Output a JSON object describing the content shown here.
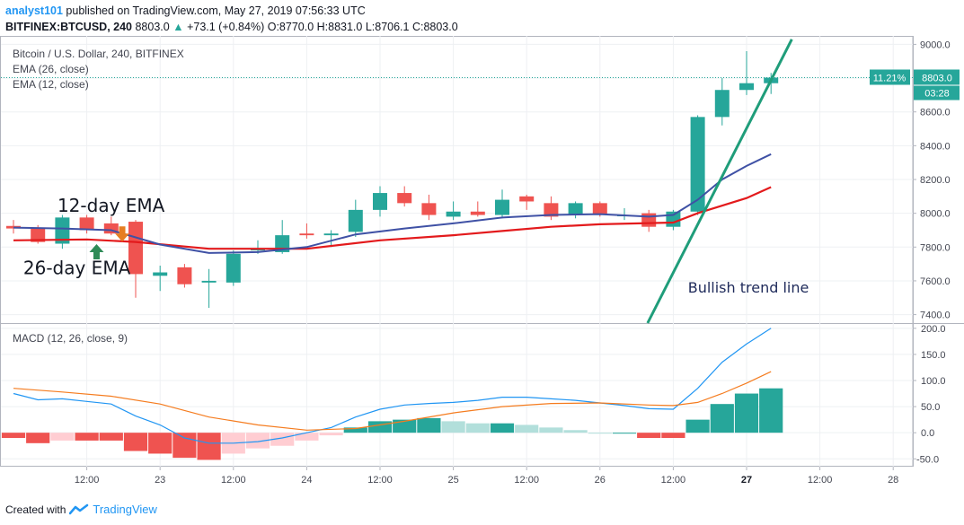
{
  "header": {
    "publisher": "analyst101",
    "published_text": "published on TradingView.com, May 27, 2019 07:56:33 UTC",
    "symbol": "BITFINEX:BTCUSD, 240",
    "price": "8803.0",
    "change": "+73.1 (+0.84%)",
    "ohlc": "O:8770.0  H:8831.0  L:8706.1  C:8803.0"
  },
  "footer": {
    "created_with": "Created with",
    "brand": "TradingView"
  },
  "colors": {
    "up": "#26a69a",
    "down": "#ef5350",
    "ema26": "#e31a1c",
    "ema12": "#3f51a5",
    "trend": "#1f9d7a",
    "macd": "#2196f3",
    "signal": "#f57c1f",
    "hist_up_strong": "#26a69a",
    "hist_up_weak": "#b2dfdb",
    "hist_down_strong": "#ef5350",
    "hist_down_weak": "#ffcdd2"
  },
  "chart_data": [
    {
      "type": "candlestick",
      "title": "Bitcoin / U.S. Dollar, 240, BITFINEX",
      "legend": [
        "EMA (26, close)",
        "EMA (12, close)"
      ],
      "x_labels": [
        {
          "x": 3,
          "label": "12:00"
        },
        {
          "x": 6,
          "label": "23"
        },
        {
          "x": 9,
          "label": "12:00"
        },
        {
          "x": 12,
          "label": "24"
        },
        {
          "x": 15,
          "label": "12:00"
        },
        {
          "x": 18,
          "label": "25"
        },
        {
          "x": 21,
          "label": "12:00"
        },
        {
          "x": 24,
          "label": "26"
        },
        {
          "x": 27,
          "label": "12:00"
        },
        {
          "x": 30,
          "label": "27"
        },
        {
          "x": 33,
          "label": "12:00"
        },
        {
          "x": 36,
          "label": "28"
        }
      ],
      "y_ticks": [
        7400,
        7600,
        7800,
        8000,
        8200,
        8400,
        8600,
        8800,
        9000
      ],
      "ylim": [
        7350,
        9050
      ],
      "candles": [
        {
          "x": 0,
          "o": 7925,
          "h": 7960,
          "l": 7880,
          "c": 7910
        },
        {
          "x": 1,
          "o": 7910,
          "h": 7930,
          "l": 7820,
          "c": 7830
        },
        {
          "x": 2,
          "o": 7820,
          "h": 7990,
          "l": 7790,
          "c": 7975
        },
        {
          "x": 3,
          "o": 7975,
          "h": 7990,
          "l": 7880,
          "c": 7900
        },
        {
          "x": 4,
          "o": 7940,
          "h": 7980,
          "l": 7870,
          "c": 7880
        },
        {
          "x": 5,
          "o": 7950,
          "h": 7960,
          "l": 7500,
          "c": 7640
        },
        {
          "x": 6,
          "o": 7630,
          "h": 7690,
          "l": 7540,
          "c": 7650
        },
        {
          "x": 7,
          "o": 7680,
          "h": 7700,
          "l": 7560,
          "c": 7580
        },
        {
          "x": 8,
          "o": 7590,
          "h": 7670,
          "l": 7440,
          "c": 7600
        },
        {
          "x": 9,
          "o": 7590,
          "h": 7780,
          "l": 7570,
          "c": 7760
        },
        {
          "x": 10,
          "o": 7780,
          "h": 7840,
          "l": 7760,
          "c": 7790
        },
        {
          "x": 11,
          "o": 7770,
          "h": 7960,
          "l": 7760,
          "c": 7870
        },
        {
          "x": 12,
          "o": 7880,
          "h": 7940,
          "l": 7850,
          "c": 7870
        },
        {
          "x": 13,
          "o": 7870,
          "h": 7900,
          "l": 7800,
          "c": 7880
        },
        {
          "x": 14,
          "o": 7890,
          "h": 8080,
          "l": 7860,
          "c": 8020
        },
        {
          "x": 15,
          "o": 8020,
          "h": 8160,
          "l": 7980,
          "c": 8120
        },
        {
          "x": 16,
          "o": 8120,
          "h": 8160,
          "l": 8040,
          "c": 8060
        },
        {
          "x": 17,
          "o": 8060,
          "h": 8110,
          "l": 7960,
          "c": 7990
        },
        {
          "x": 18,
          "o": 7980,
          "h": 8070,
          "l": 7960,
          "c": 8010
        },
        {
          "x": 19,
          "o": 8010,
          "h": 8070,
          "l": 7980,
          "c": 7990
        },
        {
          "x": 20,
          "o": 7990,
          "h": 8140,
          "l": 7970,
          "c": 8080
        },
        {
          "x": 21,
          "o": 8100,
          "h": 8110,
          "l": 8020,
          "c": 8070
        },
        {
          "x": 22,
          "o": 8060,
          "h": 8100,
          "l": 7960,
          "c": 7980
        },
        {
          "x": 23,
          "o": 7990,
          "h": 8070,
          "l": 7970,
          "c": 8060
        },
        {
          "x": 24,
          "o": 8060,
          "h": 8070,
          "l": 7980,
          "c": 7990
        },
        {
          "x": 25,
          "o": 7990,
          "h": 8030,
          "l": 7960,
          "c": 7990
        },
        {
          "x": 26,
          "o": 8000,
          "h": 8020,
          "l": 7890,
          "c": 7920
        },
        {
          "x": 27,
          "o": 7920,
          "h": 8020,
          "l": 7900,
          "c": 8010
        },
        {
          "x": 28,
          "o": 8010,
          "h": 8580,
          "l": 7990,
          "c": 8570
        },
        {
          "x": 29,
          "o": 8570,
          "h": 8800,
          "l": 8520,
          "c": 8730
        },
        {
          "x": 30,
          "o": 8730,
          "h": 8960,
          "l": 8700,
          "c": 8770
        },
        {
          "x": 31,
          "o": 8770,
          "h": 8831,
          "l": 8706.1,
          "c": 8803
        }
      ],
      "ema26": [
        {
          "x": 0,
          "y": 7840
        },
        {
          "x": 3,
          "y": 7845
        },
        {
          "x": 5,
          "y": 7830
        },
        {
          "x": 8,
          "y": 7790
        },
        {
          "x": 12,
          "y": 7790
        },
        {
          "x": 15,
          "y": 7840
        },
        {
          "x": 18,
          "y": 7870
        },
        {
          "x": 20,
          "y": 7895
        },
        {
          "x": 22,
          "y": 7920
        },
        {
          "x": 24,
          "y": 7935
        },
        {
          "x": 27,
          "y": 7945
        },
        {
          "x": 28,
          "y": 8000
        },
        {
          "x": 30,
          "y": 8090
        },
        {
          "x": 31,
          "y": 8155
        }
      ],
      "ema12": [
        {
          "x": 0,
          "y": 7915
        },
        {
          "x": 2,
          "y": 7910
        },
        {
          "x": 4,
          "y": 7900
        },
        {
          "x": 6,
          "y": 7815
        },
        {
          "x": 8,
          "y": 7765
        },
        {
          "x": 10,
          "y": 7770
        },
        {
          "x": 12,
          "y": 7800
        },
        {
          "x": 14,
          "y": 7875
        },
        {
          "x": 16,
          "y": 7910
        },
        {
          "x": 18,
          "y": 7940
        },
        {
          "x": 20,
          "y": 7975
        },
        {
          "x": 22,
          "y": 7990
        },
        {
          "x": 24,
          "y": 7995
        },
        {
          "x": 26,
          "y": 7980
        },
        {
          "x": 27,
          "y": 7990
        },
        {
          "x": 28,
          "y": 8080
        },
        {
          "x": 29,
          "y": 8200
        },
        {
          "x": 30,
          "y": 8280
        },
        {
          "x": 31,
          "y": 8350
        }
      ],
      "trend_line": [
        {
          "x": 25.95,
          "y": 7350
        },
        {
          "x": 31.85,
          "y": 9030
        }
      ],
      "last_price": {
        "value": 8803,
        "label": "8803.0",
        "percent": "11.21%",
        "countdown": "03:28"
      },
      "annotations": [
        {
          "text": "12-day EMA",
          "x": 1.8,
          "y": 8010
        },
        {
          "text": "26-day EMA",
          "x": 0.4,
          "y": 7640
        },
        {
          "text": "Bullish trend line",
          "x": 27.6,
          "y": 7530
        }
      ],
      "arrows": [
        {
          "x": 3.4,
          "y": 7770,
          "dir": "up",
          "color": "#2e8b57"
        },
        {
          "x": 4.45,
          "y": 7880,
          "dir": "down",
          "color": "#e67e22"
        }
      ]
    },
    {
      "type": "bar",
      "title": "MACD (12, 26, close, 9)",
      "y_ticks": [
        -50,
        0,
        50,
        100,
        150,
        200
      ],
      "ylim": [
        -65,
        210
      ],
      "histogram": [
        -10,
        -20,
        -15,
        -15,
        -15,
        -35,
        -40,
        -48,
        -52,
        -40,
        -30,
        -25,
        -15,
        -5,
        10,
        22,
        25,
        28,
        22,
        18,
        18,
        15,
        10,
        5,
        0,
        0,
        -10,
        -10,
        25,
        55,
        75,
        85
      ],
      "macd": [
        {
          "x": 0,
          "y": 75
        },
        {
          "x": 1,
          "y": 63
        },
        {
          "x": 2,
          "y": 65
        },
        {
          "x": 3,
          "y": 60
        },
        {
          "x": 4,
          "y": 55
        },
        {
          "x": 5,
          "y": 32
        },
        {
          "x": 6,
          "y": 15
        },
        {
          "x": 7,
          "y": -10
        },
        {
          "x": 8,
          "y": -20
        },
        {
          "x": 9,
          "y": -20
        },
        {
          "x": 10,
          "y": -17
        },
        {
          "x": 11,
          "y": -10
        },
        {
          "x": 12,
          "y": 0
        },
        {
          "x": 13,
          "y": 10
        },
        {
          "x": 14,
          "y": 30
        },
        {
          "x": 15,
          "y": 45
        },
        {
          "x": 16,
          "y": 53
        },
        {
          "x": 17,
          "y": 56
        },
        {
          "x": 18,
          "y": 58
        },
        {
          "x": 19,
          "y": 62
        },
        {
          "x": 20,
          "y": 68
        },
        {
          "x": 21,
          "y": 68
        },
        {
          "x": 22,
          "y": 65
        },
        {
          "x": 23,
          "y": 62
        },
        {
          "x": 24,
          "y": 57
        },
        {
          "x": 25,
          "y": 52
        },
        {
          "x": 26,
          "y": 46
        },
        {
          "x": 27,
          "y": 45
        },
        {
          "x": 28,
          "y": 85
        },
        {
          "x": 29,
          "y": 135
        },
        {
          "x": 30,
          "y": 170
        },
        {
          "x": 31,
          "y": 200
        }
      ],
      "signal": [
        {
          "x": 0,
          "y": 85
        },
        {
          "x": 2,
          "y": 78
        },
        {
          "x": 4,
          "y": 70
        },
        {
          "x": 6,
          "y": 55
        },
        {
          "x": 8,
          "y": 30
        },
        {
          "x": 10,
          "y": 15
        },
        {
          "x": 12,
          "y": 5
        },
        {
          "x": 14,
          "y": 8
        },
        {
          "x": 16,
          "y": 22
        },
        {
          "x": 18,
          "y": 38
        },
        {
          "x": 20,
          "y": 50
        },
        {
          "x": 22,
          "y": 56
        },
        {
          "x": 24,
          "y": 57
        },
        {
          "x": 26,
          "y": 53
        },
        {
          "x": 27,
          "y": 52
        },
        {
          "x": 28,
          "y": 58
        },
        {
          "x": 29,
          "y": 75
        },
        {
          "x": 30,
          "y": 95
        },
        {
          "x": 31,
          "y": 117
        }
      ]
    }
  ]
}
